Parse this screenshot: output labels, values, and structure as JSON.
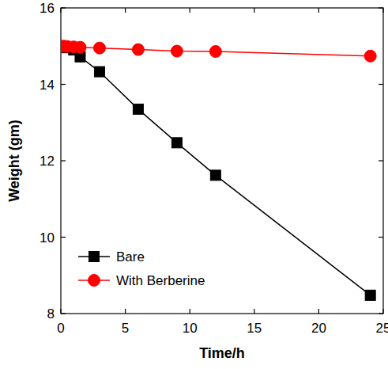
{
  "chart_data": {
    "type": "line",
    "x_label": "Time/h",
    "y_label": "Weight (gm)",
    "xlim": [
      0,
      25
    ],
    "ylim": [
      8,
      16
    ],
    "xticks": [
      0,
      5,
      10,
      15,
      20,
      25
    ],
    "yticks": [
      8,
      10,
      12,
      14,
      16
    ],
    "grid": false,
    "legend": "lower left",
    "x": [
      0,
      0.25,
      0.5,
      1,
      1.5,
      3,
      6,
      9,
      12,
      24
    ],
    "series": [
      {
        "name": "Bare",
        "color": "#000000",
        "marker": "square",
        "line_style": "solid",
        "values": [
          15,
          14.98,
          14.96,
          14.9,
          14.72,
          14.33,
          13.35,
          12.47,
          11.62,
          8.48
        ]
      },
      {
        "name": "With Berberine",
        "color": "#ff0000",
        "marker": "circle",
        "line_style": "solid",
        "values": [
          15,
          15,
          14.99,
          14.98,
          14.97,
          14.95,
          14.91,
          14.87,
          14.86,
          14.74
        ]
      }
    ]
  }
}
